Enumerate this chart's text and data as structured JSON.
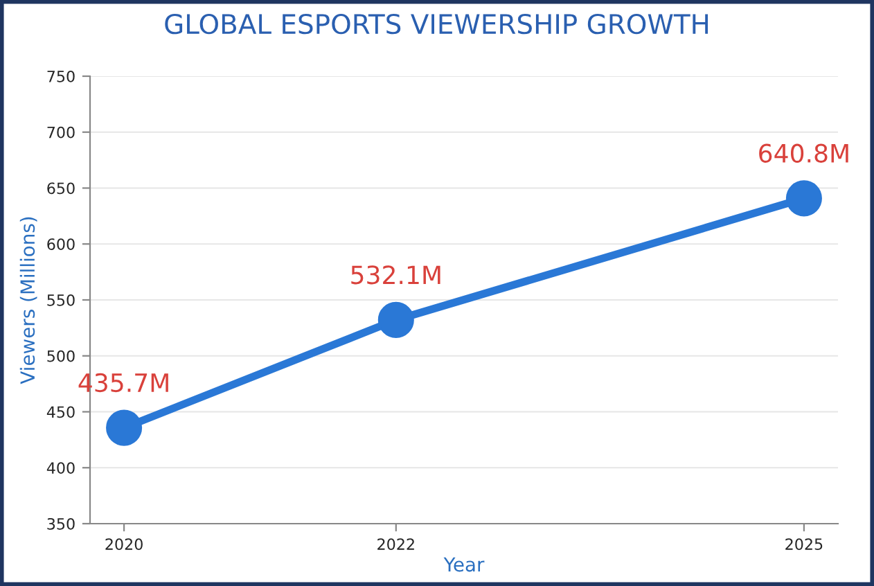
{
  "chart_data": {
    "type": "line",
    "title": "GLOBAL ESPORTS VIEWERSHIP GROWTH",
    "xlabel": "Year",
    "ylabel": "Viewers (Millions)",
    "x": [
      2020,
      2022,
      2025
    ],
    "series": [
      {
        "color": "#2a78d6",
        "values": [
          435.7,
          532.1,
          640.8
        ],
        "value_labels": [
          "435.7M",
          "532.1M",
          "640.8M"
        ]
      }
    ],
    "xlim": [
      2019.75,
      2025.25
    ],
    "xticks": [
      2020,
      2022,
      2025
    ],
    "ylim": [
      350,
      750
    ],
    "yticks": [
      350,
      400,
      450,
      500,
      550,
      600,
      650,
      700,
      750
    ],
    "grid": "y",
    "marker": "circle",
    "line_style": "solid",
    "legend": false
  }
}
